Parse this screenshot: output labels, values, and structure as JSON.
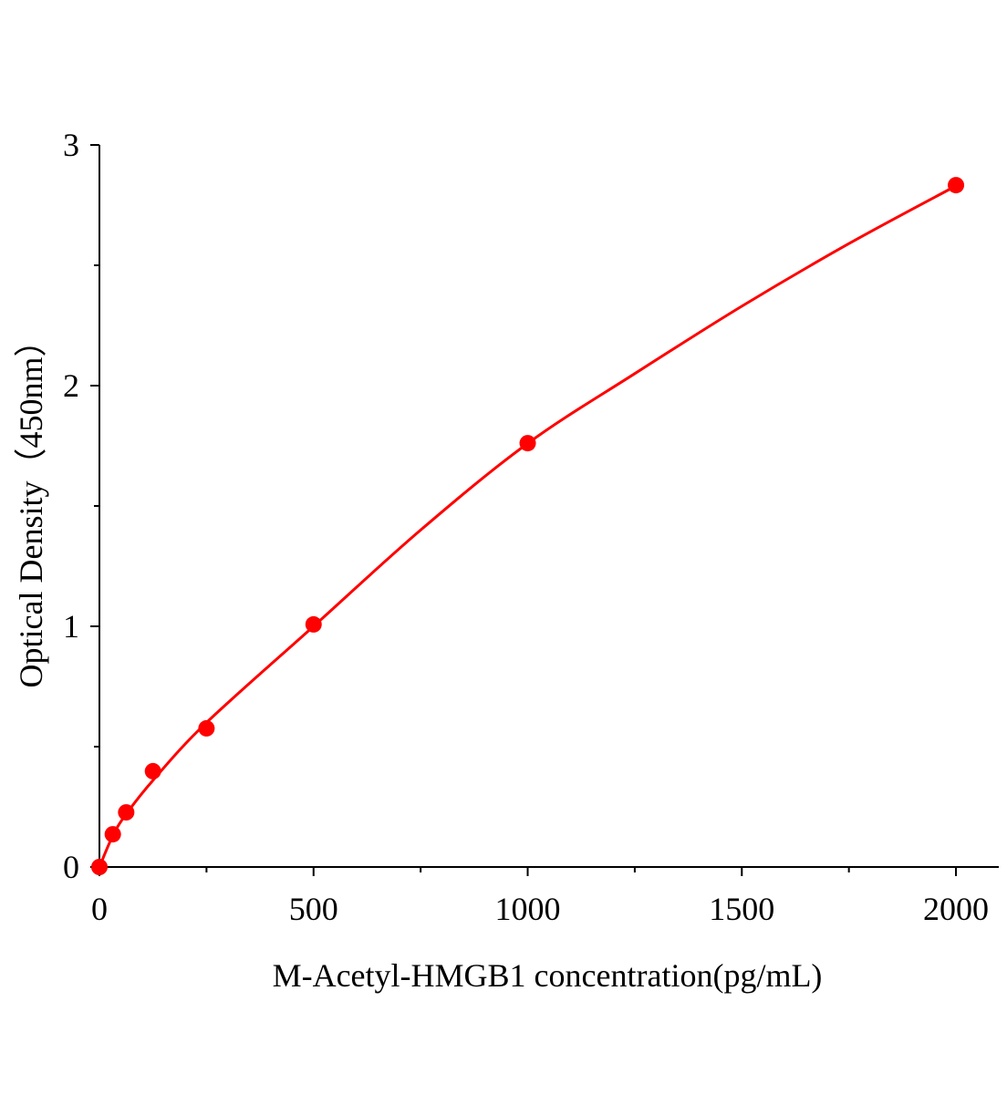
{
  "chart_data": {
    "type": "scatter",
    "x_label": "M-Acetyl-HMGB1 concentration(pg/mL)",
    "y_label": "Optical Density（450nm）",
    "series": [
      {
        "color": "#ff0000",
        "x": [
          0,
          31.25,
          62.5,
          125,
          250,
          500,
          1000,
          2000
        ],
        "values": [
          0,
          0.136,
          0.227,
          0.398,
          0.576,
          1.008,
          1.761,
          2.833
        ]
      }
    ],
    "fit": {
      "type": "line",
      "color": "#ff0000",
      "x": [
        0,
        31.25,
        62.5,
        125,
        250,
        500,
        750,
        1000,
        1250,
        1500,
        1750,
        2000
      ],
      "values": [
        0,
        0.13,
        0.22,
        0.36,
        0.6,
        1.0,
        1.4,
        1.76,
        2.05,
        2.33,
        2.59,
        2.83
      ]
    },
    "xlim": [
      0,
      2100
    ],
    "xticks": [
      0,
      500,
      1000,
      1500,
      2000
    ],
    "xminorticks": [
      250,
      750,
      1250,
      1750
    ],
    "ylim": [
      0,
      3
    ],
    "yticks": [
      0,
      1,
      2,
      3
    ],
    "yminorticks": [
      0.5,
      1.5,
      2.5
    ]
  }
}
